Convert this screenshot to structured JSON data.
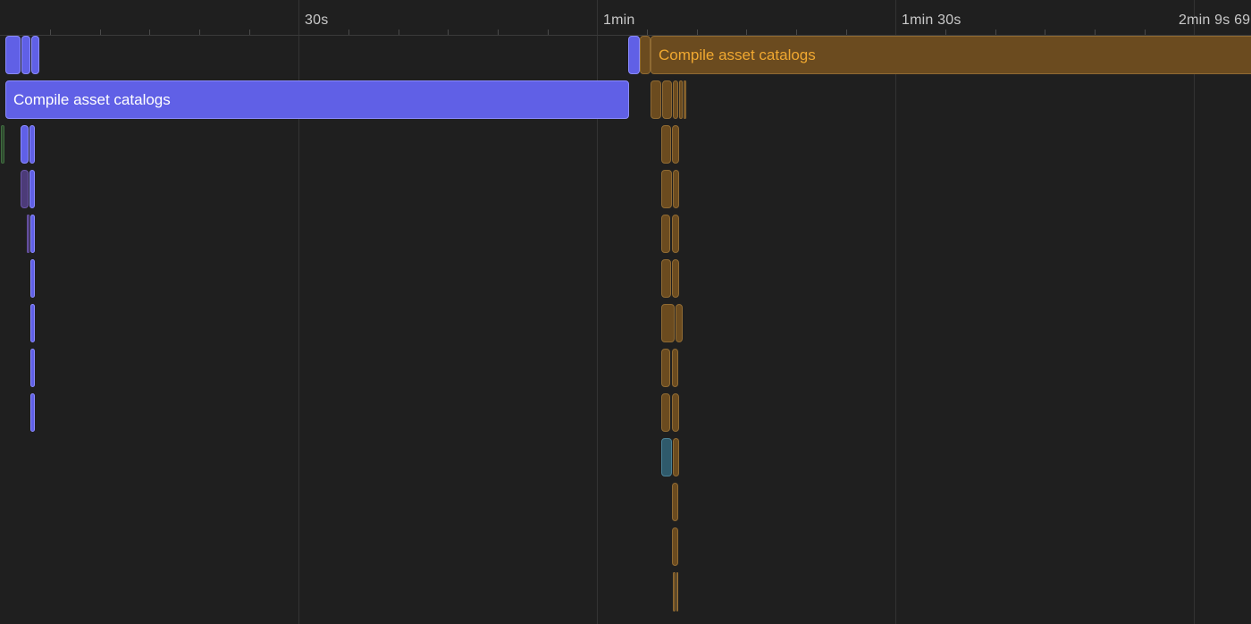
{
  "ruler": {
    "ticks": [
      "30s",
      "1min",
      "1min 30s",
      "2min 9s 69"
    ]
  },
  "lanes": {
    "blue_label": "Compile asset catalogs",
    "orange_label": "Compile asset catalogs"
  },
  "colors": {
    "background": "#1f1f1f",
    "blue_task": "#6060e6",
    "orange_task": "#6b4b1f",
    "orange_label": "#f0a830"
  }
}
